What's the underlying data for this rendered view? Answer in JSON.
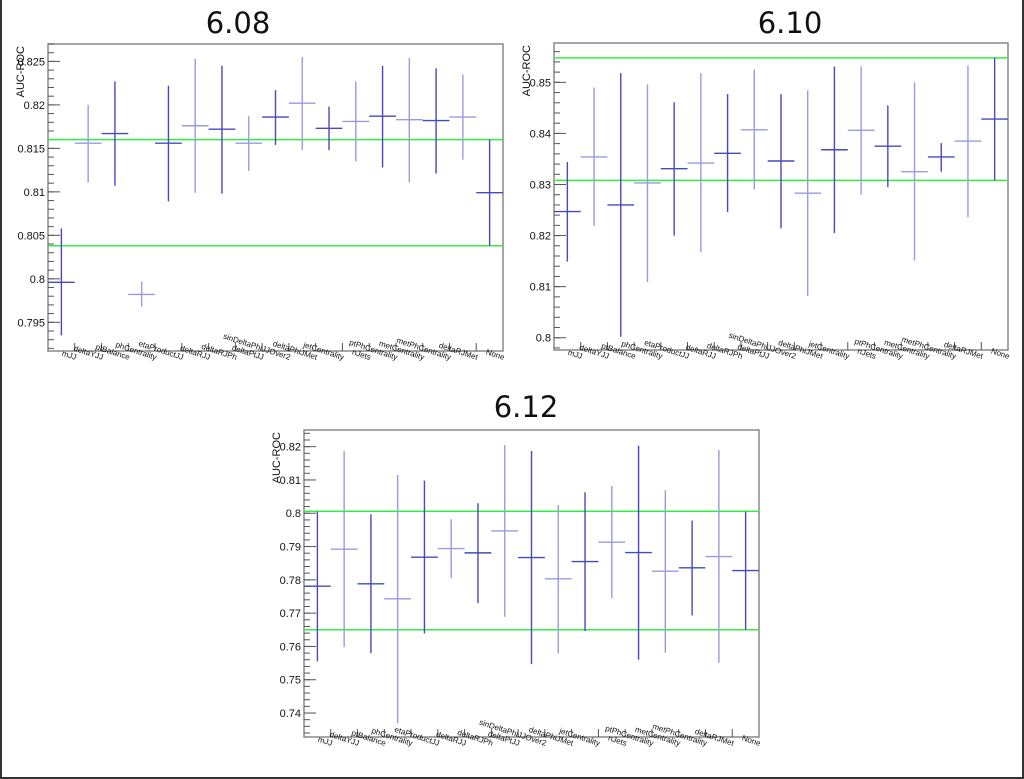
{
  "colors": {
    "errorbar": "#4848c0",
    "errorbar_light": "#9a9ae0",
    "reference_line": "#33ee44",
    "frame": "#888888",
    "tick": "#555555"
  },
  "chart_data": [
    {
      "type": "scatter",
      "title": "6.08",
      "ylabel": "AUC-ROC",
      "xlabel": "",
      "ylim": [
        0.7917,
        0.827
      ],
      "yticks": [
        0.795,
        0.8,
        0.805,
        0.81,
        0.815,
        0.82,
        0.825
      ],
      "ytick_labels": [
        "0.795",
        "0.8",
        "0.805",
        "0.81",
        "0.815",
        "0.82",
        "0.825"
      ],
      "minor_step": 0.001,
      "reference_lines": [
        0.816,
        0.8038
      ],
      "categories": [
        "mJJ",
        "deltaYJJ",
        "ptBalance",
        "phCentrality",
        "etaProductJJ",
        "deltaRJJ",
        "deltaRJPh",
        "deltaPtJJ",
        "sinDeltaPhiJJOver2",
        "deltaPhiJMet",
        "jetCentrality",
        "nJets",
        "ptPhCentrality",
        "metCentrality",
        "metPhCentrality",
        "deltaRJMet",
        "None"
      ],
      "values": [
        0.7996,
        0.8156,
        0.8167,
        0.7982,
        0.8156,
        0.8176,
        0.8172,
        0.8156,
        0.8186,
        0.8202,
        0.8173,
        0.8181,
        0.8187,
        0.8183,
        0.8182,
        0.8186,
        0.8099
      ],
      "err_high": [
        0.8058,
        0.82,
        0.8227,
        0.7997,
        0.8222,
        0.8253,
        0.8245,
        0.8187,
        0.8217,
        0.8255,
        0.8198,
        0.8227,
        0.8245,
        0.8254,
        0.8242,
        0.8235,
        0.816
      ],
      "err_low": [
        0.7935,
        0.8111,
        0.8107,
        0.7968,
        0.8089,
        0.8099,
        0.8098,
        0.8124,
        0.8154,
        0.8148,
        0.8148,
        0.8135,
        0.8128,
        0.8111,
        0.8121,
        0.8137,
        0.8038
      ]
    },
    {
      "type": "scatter",
      "title": "6.10",
      "ylabel": "AUC-ROC",
      "xlabel": "",
      "ylim": [
        0.7976,
        0.8577
      ],
      "yticks": [
        0.8,
        0.81,
        0.82,
        0.83,
        0.84,
        0.85
      ],
      "ytick_labels": [
        "0.8",
        "0.81",
        "0.82",
        "0.83",
        "0.84",
        "0.85"
      ],
      "minor_step": 0.002,
      "reference_lines": [
        0.8548,
        0.8308
      ],
      "categories": [
        "mJJ",
        "deltaYJJ",
        "ptBalance",
        "phCentrality",
        "etaProductJJ",
        "deltaRJJ",
        "deltaRJPh",
        "deltaPtJJ",
        "sinDeltaPhiJJOver2",
        "deltaPhiJMet",
        "jetCentrality",
        "nJets",
        "ptPhCentrality",
        "metCentrality",
        "metPhCentrality",
        "deltaRJMet",
        "None"
      ],
      "values": [
        0.8247,
        0.8354,
        0.826,
        0.8303,
        0.8331,
        0.8342,
        0.8361,
        0.8407,
        0.8346,
        0.8283,
        0.8368,
        0.8406,
        0.8375,
        0.8325,
        0.8354,
        0.8385,
        0.8428
      ],
      "err_high": [
        0.8344,
        0.849,
        0.8518,
        0.8496,
        0.8461,
        0.8518,
        0.8477,
        0.8525,
        0.8477,
        0.8484,
        0.8531,
        0.8531,
        0.8455,
        0.85,
        0.8381,
        0.8533,
        0.8548
      ],
      "err_low": [
        0.8149,
        0.8219,
        0.8002,
        0.8109,
        0.82,
        0.8167,
        0.8246,
        0.829,
        0.8214,
        0.8082,
        0.8205,
        0.828,
        0.8295,
        0.8151,
        0.8325,
        0.8236,
        0.8308
      ]
    },
    {
      "type": "scatter",
      "title": "6.12",
      "ylabel": "AUC-ROC",
      "xlabel": "",
      "ylim": [
        0.7328,
        0.825
      ],
      "yticks": [
        0.74,
        0.75,
        0.76,
        0.77,
        0.78,
        0.79,
        0.8,
        0.81,
        0.82
      ],
      "ytick_labels": [
        "0.74",
        "0.75",
        "0.76",
        "0.77",
        "0.78",
        "0.79",
        "0.8",
        "0.81",
        "0.82"
      ],
      "minor_step": 0.002,
      "reference_lines": [
        0.8006,
        0.765
      ],
      "categories": [
        "mJJ",
        "deltaYJJ",
        "ptBalance",
        "phCentrality",
        "etaProductJJ",
        "deltaRJJ",
        "deltaRJPh",
        "deltaPtJJ",
        "sinDeltaPhiJJOver2",
        "deltaPhiJMet",
        "jetCentrality",
        "nJets",
        "ptPhCentrality",
        "metCentrality",
        "metPhCentrality",
        "deltaRJMet",
        "None"
      ],
      "values": [
        0.7781,
        0.7892,
        0.7788,
        0.7743,
        0.7868,
        0.7894,
        0.7881,
        0.7947,
        0.7867,
        0.7803,
        0.7855,
        0.7913,
        0.7882,
        0.7826,
        0.7836,
        0.787,
        0.7828
      ],
      "err_high": [
        0.8005,
        0.8187,
        0.7997,
        0.8115,
        0.8098,
        0.7982,
        0.803,
        0.8205,
        0.8187,
        0.8025,
        0.8063,
        0.8082,
        0.8203,
        0.8069,
        0.7978,
        0.819,
        0.8005
      ],
      "err_low": [
        0.7555,
        0.7598,
        0.758,
        0.737,
        0.7639,
        0.7805,
        0.773,
        0.7689,
        0.7547,
        0.7579,
        0.7646,
        0.7745,
        0.756,
        0.7581,
        0.7693,
        0.7551,
        0.765
      ]
    }
  ]
}
